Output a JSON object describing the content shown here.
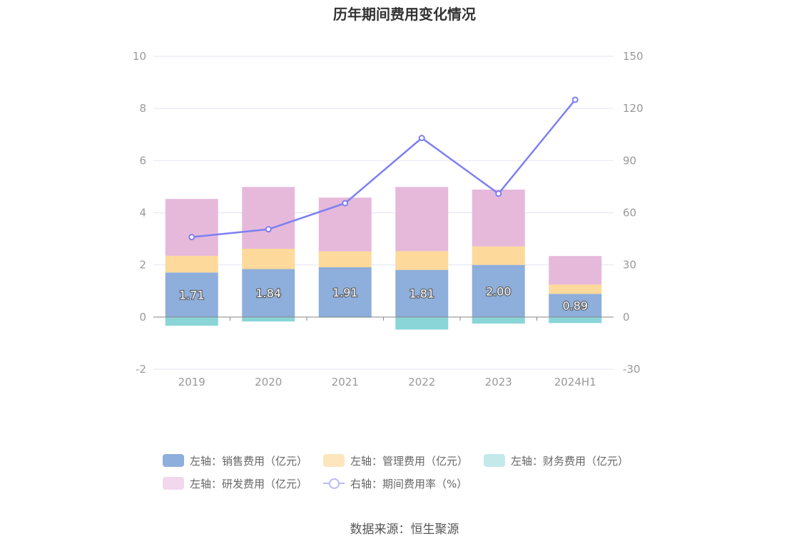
{
  "title": "历年期间费用变化情况",
  "source": "数据来源：恒生聚源",
  "colors": {
    "sales": "#8eaedb",
    "admin": "#fdd99b",
    "finance": "#8ad5d8",
    "rd": "#e6b9db",
    "rate": "#7d7ff2",
    "grid": "#e3e4f2",
    "axis_text": "#999999"
  },
  "legend": [
    {
      "label": "左轴：销售费用（亿元）",
      "swatch": "#8eaedb"
    },
    {
      "label": "左轴：管理费用（亿元）",
      "swatch": "#fde5be"
    },
    {
      "label": "左轴：财务费用（亿元）",
      "swatch": "#c3e9eb"
    },
    {
      "label": "左轴：研发费用（亿元）",
      "swatch": "#f2d8ec"
    },
    {
      "label": "右轴：期间费用率（%）",
      "swatch": "line"
    }
  ],
  "chart_data": {
    "type": "bar",
    "stacked": true,
    "categories": [
      "2019",
      "2020",
      "2021",
      "2022",
      "2023",
      "2024H1"
    ],
    "series": [
      {
        "name": "左轴：销售费用（亿元）",
        "axis": "left",
        "values": [
          1.71,
          1.84,
          1.91,
          1.81,
          2.0,
          0.89
        ],
        "labels": [
          "1.71",
          "1.84",
          "1.91",
          "1.81",
          "2.00",
          "0.89"
        ]
      },
      {
        "name": "左轴：管理费用（亿元）",
        "axis": "left",
        "values": [
          0.64,
          0.78,
          0.61,
          0.72,
          0.71,
          0.36
        ]
      },
      {
        "name": "左轴：财务费用（亿元）",
        "axis": "left",
        "values": [
          -0.33,
          -0.17,
          -0.02,
          -0.48,
          -0.25,
          -0.23
        ]
      },
      {
        "name": "左轴：研发费用（亿元）",
        "axis": "left",
        "values": [
          2.18,
          2.37,
          2.06,
          2.46,
          2.18,
          1.09
        ]
      },
      {
        "name": "右轴：期间费用率（%）",
        "axis": "right",
        "type": "line",
        "values": [
          46,
          50.5,
          65.5,
          103,
          71,
          125
        ]
      }
    ],
    "left_axis": {
      "min": -2,
      "max": 10,
      "ticks": [
        "-2",
        "0",
        "2",
        "4",
        "6",
        "8",
        "10"
      ]
    },
    "right_axis": {
      "min": -30,
      "max": 150,
      "ticks": [
        "-30",
        "0",
        "30",
        "60",
        "90",
        "120",
        "150"
      ]
    },
    "grid": true,
    "legend_position": "bottom"
  }
}
